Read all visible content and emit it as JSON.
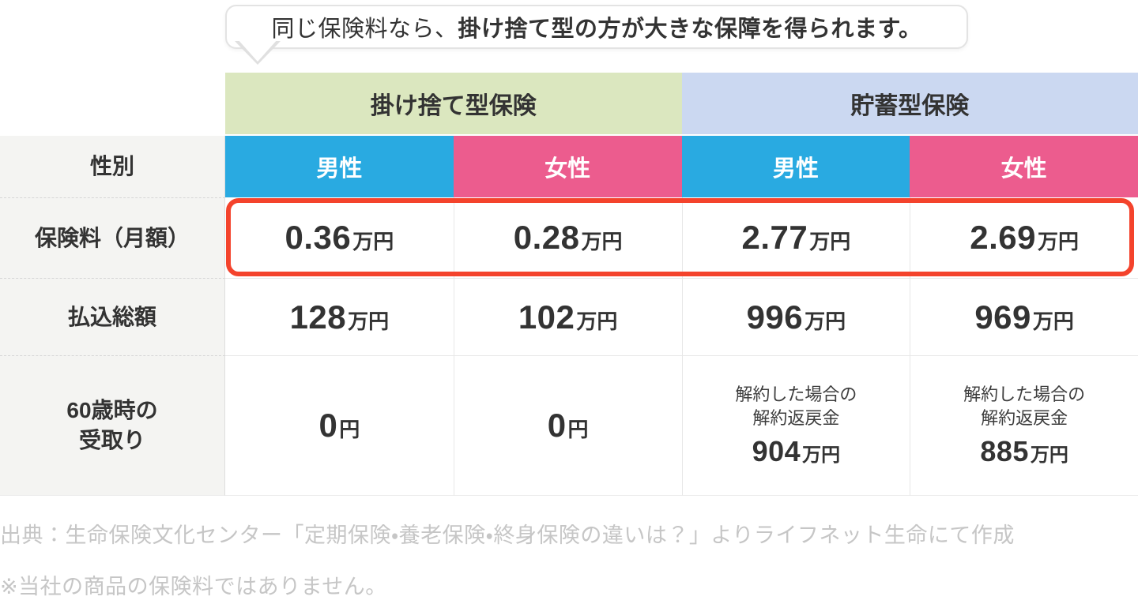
{
  "callout": {
    "text_regular": "同じ保険料なら、",
    "text_bold": "掛け捨て型の方が大きな保障を得られます。"
  },
  "colors": {
    "group_term_bg": "#dbe7bf",
    "group_savings_bg": "#cbd8f1",
    "male_bg": "#29aae1",
    "female_bg": "#ec5c8e",
    "highlight_border": "#f4432c",
    "label_bg": "#f4f4f2"
  },
  "table": {
    "groups": [
      {
        "label": "掛け捨て型保険"
      },
      {
        "label": "貯蓄型保険"
      }
    ],
    "gender_row": {
      "label": "性別",
      "cells": [
        {
          "label": "男性"
        },
        {
          "label": "女性"
        },
        {
          "label": "男性"
        },
        {
          "label": "女性"
        }
      ]
    },
    "premium_row": {
      "label": "保険料（月額）",
      "cells": [
        {
          "value": "0.36",
          "unit": "万円"
        },
        {
          "value": "0.28",
          "unit": "万円"
        },
        {
          "value": "2.77",
          "unit": "万円"
        },
        {
          "value": "2.69",
          "unit": "万円"
        }
      ]
    },
    "total_row": {
      "label": "払込総額",
      "cells": [
        {
          "value": "128",
          "unit": "万円"
        },
        {
          "value": "102",
          "unit": "万円"
        },
        {
          "value": "996",
          "unit": "万円"
        },
        {
          "value": "969",
          "unit": "万円"
        }
      ]
    },
    "age60_row": {
      "label": "60歳時の\n受取り",
      "cells": [
        {
          "value": "0",
          "unit": "円"
        },
        {
          "value": "0",
          "unit": "円"
        },
        {
          "note": "解約した場合の\n解約返戻金",
          "value": "904",
          "unit": "万円"
        },
        {
          "note": "解約した場合の\n解約返戻金",
          "value": "885",
          "unit": "万円"
        }
      ]
    }
  },
  "footer": {
    "line1": "出典：生命保険文化センター「定期保険・養老保険・終身保険の違いは？」よりライフネット生命にて作成",
    "line2": "※当社の商品の保険料ではありません。"
  },
  "chart_data": {
    "type": "table",
    "title": "同じ保険料なら、掛け捨て型の方が大きな保障を得られます。",
    "column_groups": [
      "掛け捨て型保険",
      "貯蓄型保険"
    ],
    "columns": [
      "掛け捨て型保険 男性",
      "掛け捨て型保険 女性",
      "貯蓄型保険 男性",
      "貯蓄型保険 女性"
    ],
    "rows": [
      {
        "label": "保険料（月額）",
        "values": [
          "0.36万円",
          "0.28万円",
          "2.77万円",
          "2.69万円"
        ],
        "highlighted": true
      },
      {
        "label": "払込総額",
        "values": [
          "128万円",
          "102万円",
          "996万円",
          "969万円"
        ]
      },
      {
        "label": "60歳時の受取り",
        "values": [
          "0円",
          "0円",
          "解約した場合の解約返戻金 904万円",
          "解約した場合の解約返戻金 885万円"
        ]
      }
    ]
  }
}
